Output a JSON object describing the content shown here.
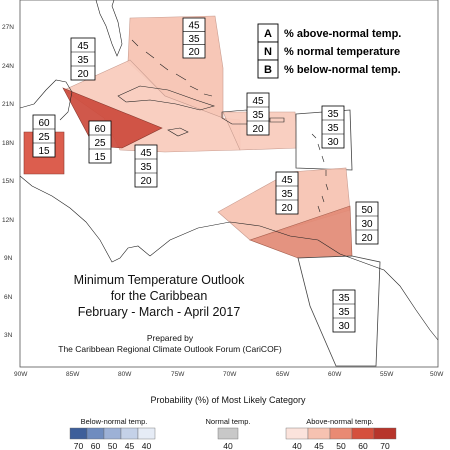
{
  "map": {
    "lat_ticks": [
      "27N",
      "24N",
      "21N",
      "18N",
      "15N",
      "12N",
      "9N",
      "6N",
      "3N"
    ],
    "lon_ticks": [
      "90W",
      "85W",
      "80W",
      "75W",
      "70W",
      "65W",
      "60W",
      "55W",
      "50W"
    ]
  },
  "key": {
    "items": [
      {
        "letter": "A",
        "text": "% above-normal temp."
      },
      {
        "letter": "N",
        "text": "% normal temperature"
      },
      {
        "letter": "B",
        "text": "% below-normal temp."
      }
    ]
  },
  "regions": [
    {
      "id": "bahamas",
      "values": [
        "45",
        "35",
        "20"
      ],
      "color": "#f6c2b1"
    },
    {
      "id": "cuba-west",
      "values": [
        "45",
        "35",
        "20"
      ],
      "color": "#f6c2b1"
    },
    {
      "id": "greater-antilles",
      "values": [
        "45",
        "35",
        "20"
      ],
      "color": "#f8cbbc"
    },
    {
      "id": "leeward",
      "values": [
        "45",
        "35",
        "20"
      ],
      "color": "#f8cbbc"
    },
    {
      "id": "cayman",
      "values": [
        "60",
        "25",
        "15"
      ],
      "color": "#cc4a3c"
    },
    {
      "id": "belize",
      "values": [
        "60",
        "25",
        "15"
      ],
      "color": "#d9503f"
    },
    {
      "id": "northern-leeward",
      "values": [
        "35",
        "35",
        "30"
      ],
      "color": "#ffffff"
    },
    {
      "id": "windward",
      "values": [
        "45",
        "35",
        "20"
      ],
      "color": "#f6c2b1"
    },
    {
      "id": "trinidad",
      "values": [
        "50",
        "30",
        "20"
      ],
      "color": "#e28a75"
    },
    {
      "id": "guianas",
      "values": [
        "35",
        "35",
        "30"
      ],
      "color": "#ffffff"
    }
  ],
  "title": {
    "line1": "Minimum Temperature Outlook",
    "line2": "for the Caribbean",
    "line3": "February - March - April 2017",
    "prepared": "Prepared by",
    "org": "The Caribbean Regional Climate Outlook Forum (CariCOF)"
  },
  "legend": {
    "title": "Probability (%) of Most Likely Category",
    "below": {
      "heading": "Below-normal temp.",
      "labels": [
        "70",
        "60",
        "50",
        "45",
        "40"
      ],
      "colors": [
        "#3e5f9a",
        "#6f8cbf",
        "#9db1d6",
        "#c4d1e8",
        "#e6ecf6"
      ]
    },
    "normal": {
      "heading": "Normal temp.",
      "labels": [
        "40"
      ],
      "colors": [
        "#c8c8c8"
      ]
    },
    "above": {
      "heading": "Above-normal temp.",
      "labels": [
        "40",
        "45",
        "50",
        "60",
        "70"
      ],
      "colors": [
        "#fbe3dc",
        "#f6c2b1",
        "#e98a73",
        "#d5503d",
        "#b7352b"
      ]
    }
  }
}
